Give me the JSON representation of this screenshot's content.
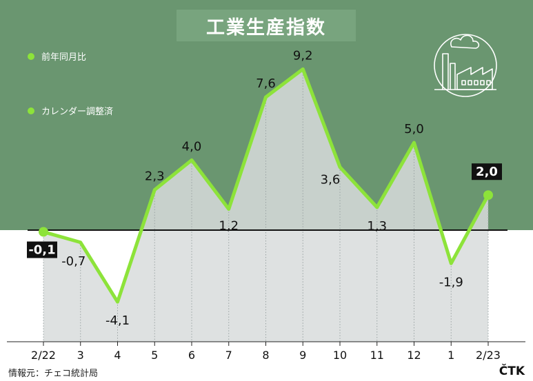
{
  "chart_data": {
    "type": "line",
    "title": "工業生産指数",
    "categories": [
      "2/22",
      "3",
      "4",
      "5",
      "6",
      "7",
      "8",
      "9",
      "10",
      "11",
      "12",
      "1",
      "2/23"
    ],
    "series": [
      {
        "name": "前年同月比",
        "values": [
          -0.1,
          -0.7,
          -4.1,
          2.3,
          4.0,
          1.2,
          7.6,
          9.2,
          3.6,
          1.3,
          5.0,
          -1.9,
          2.0
        ]
      }
    ],
    "value_labels": [
      "-0,1",
      "-0,7",
      "-4,1",
      "2,3",
      "4,0",
      "1,2",
      "7,6",
      "9,2",
      "3,6",
      "1,3",
      "5,0",
      "-1,9",
      "2,0"
    ],
    "legend": [
      "前年同月比",
      "カレンダー調整済"
    ],
    "grid": true,
    "colors": {
      "line": "#8de33a",
      "background": "#6a9670",
      "area": "#d8dcdc",
      "axis": "#111111"
    }
  },
  "source": "情報元：チェコ統計局",
  "brand": "ČTK",
  "icon": "factory-icon"
}
